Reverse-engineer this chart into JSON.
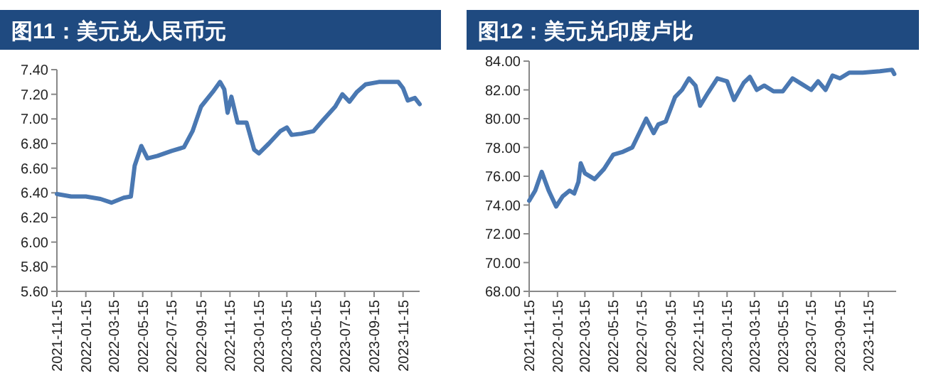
{
  "chart_data": [
    {
      "type": "line",
      "title": "图11：美元兑人民币元",
      "color": "#4a78b2",
      "x": [
        "2021-11-15",
        "2021-12-15",
        "2022-01-15",
        "2022-02-15",
        "2022-03-10",
        "2022-04-05",
        "2022-04-20",
        "2022-04-28",
        "2022-05-12",
        "2022-05-25",
        "2022-06-15",
        "2022-07-15",
        "2022-08-10",
        "2022-08-28",
        "2022-09-15",
        "2022-10-10",
        "2022-10-25",
        "2022-11-03",
        "2022-11-10",
        "2022-11-18",
        "2022-12-01",
        "2022-12-20",
        "2023-01-05",
        "2023-01-15",
        "2023-02-05",
        "2023-03-01",
        "2023-03-15",
        "2023-03-25",
        "2023-04-15",
        "2023-05-10",
        "2023-05-28",
        "2023-06-25",
        "2023-07-10",
        "2023-07-25",
        "2023-08-10",
        "2023-08-28",
        "2023-09-25",
        "2023-10-25",
        "2023-11-05",
        "2023-11-15",
        "2023-11-25",
        "2023-12-10",
        "2023-12-20"
      ],
      "values": [
        6.39,
        6.37,
        6.37,
        6.35,
        6.32,
        6.36,
        6.37,
        6.62,
        6.78,
        6.68,
        6.7,
        6.74,
        6.77,
        6.9,
        7.1,
        7.22,
        7.3,
        7.24,
        7.05,
        7.18,
        6.97,
        6.97,
        6.75,
        6.72,
        6.8,
        6.9,
        6.93,
        6.87,
        6.88,
        6.9,
        6.98,
        7.1,
        7.2,
        7.14,
        7.22,
        7.28,
        7.3,
        7.3,
        7.3,
        7.25,
        7.15,
        7.17,
        7.12
      ],
      "xlim": [
        "2021-11-15",
        "2023-12-20"
      ],
      "ylim": [
        5.6,
        7.4
      ],
      "yticks": [
        {
          "value": 5.6,
          "label": "5.60"
        },
        {
          "value": 5.8,
          "label": "5.80"
        },
        {
          "value": 6.0,
          "label": "6.00"
        },
        {
          "value": 6.2,
          "label": "6.20"
        },
        {
          "value": 6.4,
          "label": "6.40"
        },
        {
          "value": 6.6,
          "label": "6.60"
        },
        {
          "value": 6.8,
          "label": "6.80"
        },
        {
          "value": 7.0,
          "label": "7.00"
        },
        {
          "value": 7.2,
          "label": "7.20"
        },
        {
          "value": 7.4,
          "label": "7.40"
        }
      ],
      "xticks": [
        "2021-11-15",
        "2022-01-15",
        "2022-03-15",
        "2022-05-15",
        "2022-07-15",
        "2022-09-15",
        "2022-11-15",
        "2023-01-15",
        "2023-03-15",
        "2023-05-15",
        "2023-07-15",
        "2023-09-15",
        "2023-11-15"
      ]
    },
    {
      "type": "line",
      "title": "图12：美元兑印度卢比",
      "color": "#4a78b2",
      "x": [
        "2021-11-15",
        "2021-11-28",
        "2021-12-12",
        "2021-12-27",
        "2022-01-12",
        "2022-01-26",
        "2022-02-10",
        "2022-02-20",
        "2022-03-01",
        "2022-03-06",
        "2022-03-15",
        "2022-04-05",
        "2022-04-25",
        "2022-05-15",
        "2022-06-05",
        "2022-06-25",
        "2022-07-10",
        "2022-07-25",
        "2022-08-10",
        "2022-08-20",
        "2022-09-05",
        "2022-09-25",
        "2022-10-10",
        "2022-10-25",
        "2022-11-08",
        "2022-11-18",
        "2022-12-05",
        "2022-12-25",
        "2023-01-15",
        "2023-01-30",
        "2023-02-20",
        "2023-03-05",
        "2023-03-20",
        "2023-04-05",
        "2023-04-25",
        "2023-05-15",
        "2023-06-05",
        "2023-06-25",
        "2023-07-15",
        "2023-07-30",
        "2023-08-15",
        "2023-08-30",
        "2023-09-15",
        "2023-10-05",
        "2023-11-03",
        "2023-12-10",
        "2024-01-05",
        "2024-01-10"
      ],
      "values": [
        74.3,
        75.0,
        76.3,
        75.0,
        73.9,
        74.6,
        75.0,
        74.8,
        75.6,
        76.9,
        76.2,
        75.8,
        76.5,
        77.5,
        77.7,
        78.0,
        79.0,
        80.0,
        79.0,
        79.6,
        79.8,
        81.5,
        82.0,
        82.8,
        82.3,
        80.9,
        81.8,
        82.8,
        82.6,
        81.3,
        82.5,
        82.9,
        82.0,
        82.3,
        81.9,
        81.9,
        82.8,
        82.4,
        82.0,
        82.6,
        82.0,
        83.0,
        82.8,
        83.2,
        83.2,
        83.3,
        83.4,
        83.1
      ],
      "xlim": [
        "2021-11-15",
        "2024-01-14"
      ],
      "ylim": [
        68,
        84
      ],
      "yticks": [
        {
          "value": 68,
          "label": "68.00"
        },
        {
          "value": 70,
          "label": "70.00"
        },
        {
          "value": 72,
          "label": "72.00"
        },
        {
          "value": 74,
          "label": "74.00"
        },
        {
          "value": 76,
          "label": "76.00"
        },
        {
          "value": 78,
          "label": "78.00"
        },
        {
          "value": 80,
          "label": "80.00"
        },
        {
          "value": 82,
          "label": "82.00"
        },
        {
          "value": 84,
          "label": "84.00"
        }
      ],
      "xticks": [
        "2021-11-15",
        "2022-01-15",
        "2022-03-15",
        "2022-05-15",
        "2022-07-15",
        "2022-09-15",
        "2022-11-15",
        "2023-01-15",
        "2023-03-15",
        "2023-05-15",
        "2023-07-15",
        "2023-09-15",
        "2023-11-15"
      ]
    }
  ]
}
